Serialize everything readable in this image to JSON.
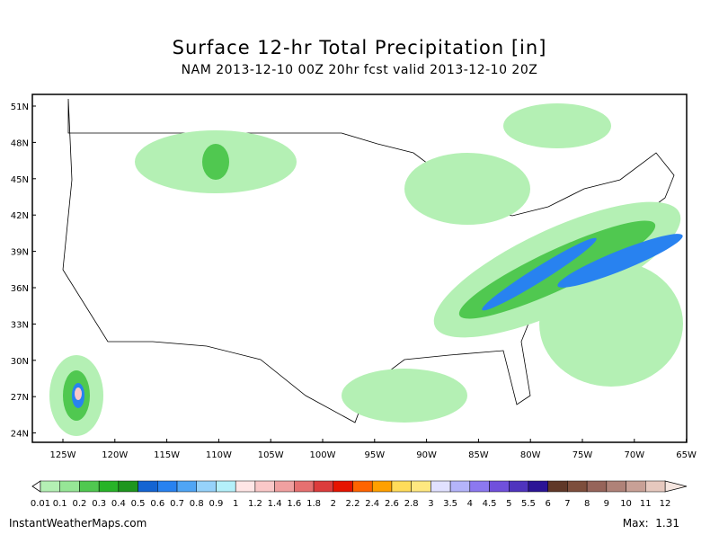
{
  "header": {
    "title": "Surface 12-hr Total Precipitation [in]",
    "subtitle": "NAM 2013-12-10 00Z 20hr fcst valid 2013-12-10 20Z"
  },
  "map": {
    "lat_labels": [
      "51N",
      "48N",
      "45N",
      "42N",
      "39N",
      "36N",
      "33N",
      "30N",
      "27N",
      "24N"
    ],
    "lon_labels": [
      "125W",
      "120W",
      "115W",
      "110W",
      "105W",
      "100W",
      "95W",
      "90W",
      "85W",
      "80W",
      "75W",
      "70W",
      "65W"
    ]
  },
  "colorbar": {
    "levels": [
      0.01,
      0.1,
      0.2,
      0.3,
      0.4,
      0.5,
      0.6,
      0.7,
      0.8,
      0.9,
      1,
      1.2,
      1.4,
      1.6,
      1.8,
      2,
      2.2,
      2.4,
      2.6,
      2.8,
      3,
      3.5,
      4,
      4.5,
      5,
      5.5,
      6,
      7,
      8,
      9,
      10,
      11,
      12
    ],
    "colors": [
      "#b4f0b4",
      "#96e696",
      "#50c850",
      "#28b428",
      "#1e961e",
      "#1464d2",
      "#2882f0",
      "#50a5f5",
      "#96d2fa",
      "#b4f0fa",
      "#ffe6e6",
      "#fac8c8",
      "#f0a0a0",
      "#e67070",
      "#dc3c3c",
      "#e61400",
      "#ff6400",
      "#ffa000",
      "#ffdc5a",
      "#ffe880",
      "#e1e1ff",
      "#b4b4fa",
      "#8c78f0",
      "#7050dc",
      "#4f34be",
      "#2b1496",
      "#603828",
      "#7d4e3c",
      "#96645a",
      "#af8278",
      "#c8a096",
      "#e6c8be"
    ]
  },
  "footer": {
    "site": "InstantWeatherMaps.com",
    "max": "Max:  1.31"
  }
}
